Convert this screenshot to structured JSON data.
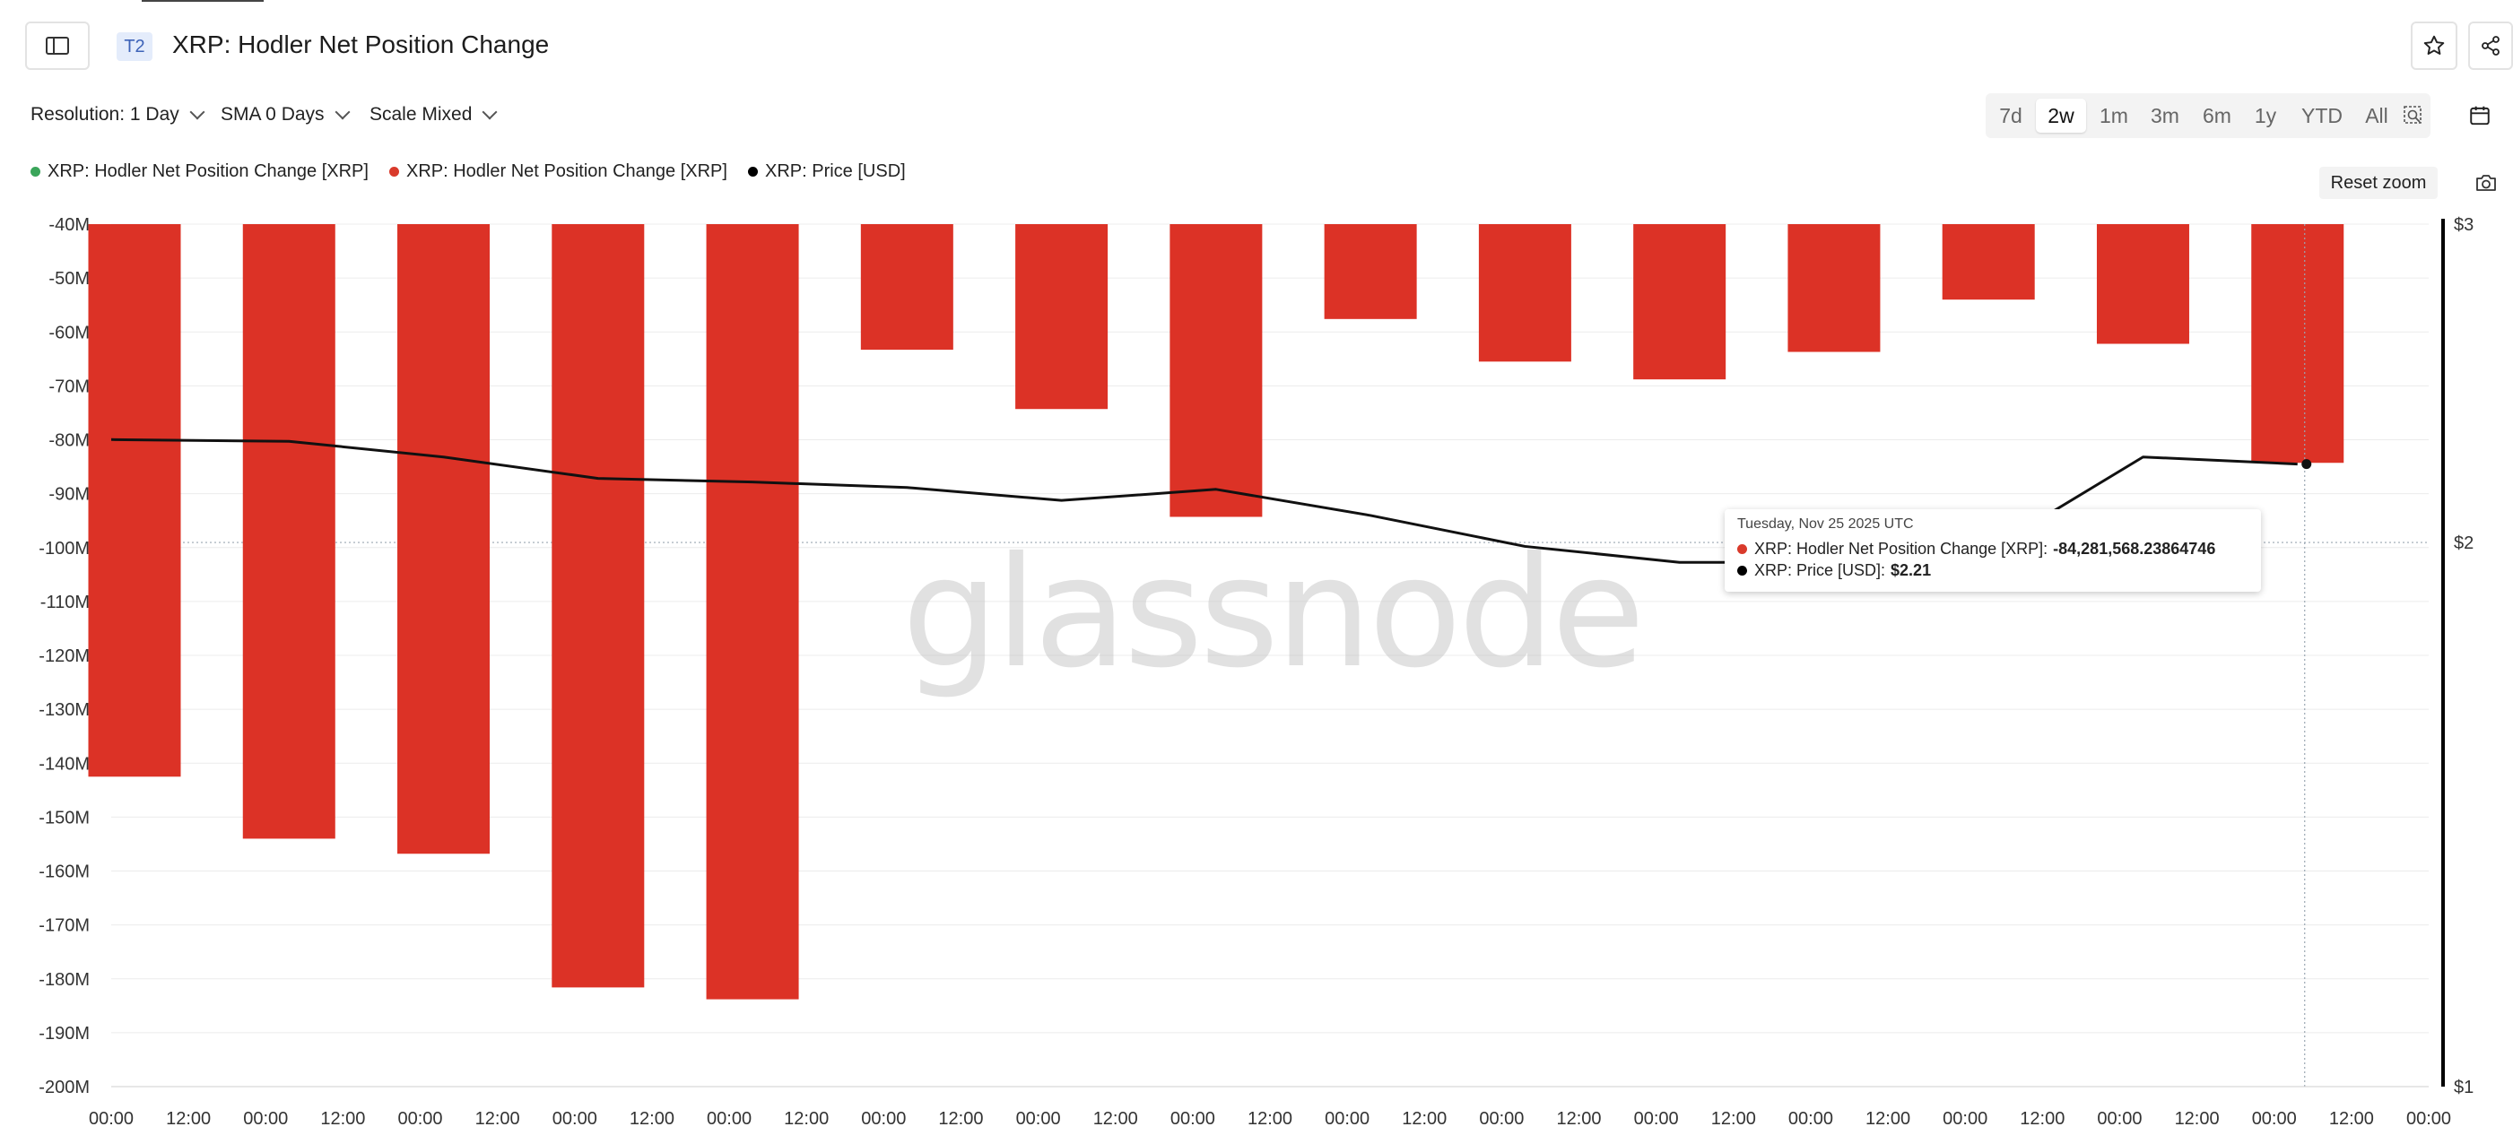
{
  "header": {
    "tier_badge": "T2",
    "title": "XRP: Hodler Net Position Change"
  },
  "controls": {
    "resolution": "Resolution: 1 Day",
    "sma": "SMA 0 Days",
    "scale": "Scale Mixed"
  },
  "ranges": [
    {
      "label": "7d",
      "active": false
    },
    {
      "label": "2w",
      "active": true
    },
    {
      "label": "1m",
      "active": false
    },
    {
      "label": "3m",
      "active": false
    },
    {
      "label": "6m",
      "active": false
    },
    {
      "label": "1y",
      "active": false
    },
    {
      "label": "YTD",
      "active": false
    },
    {
      "label": "All",
      "active": false
    }
  ],
  "legend": [
    {
      "label": "XRP: Hodler Net Position Change [XRP]",
      "color": "#3aa55a"
    },
    {
      "label": "XRP: Hodler Net Position Change [XRP]",
      "color": "#d93a2b"
    },
    {
      "label": "XRP: Price [USD]",
      "color": "#000000"
    }
  ],
  "reset_zoom": "Reset zoom",
  "watermark": "glassnode",
  "tooltip": {
    "date": "Tuesday, Nov 25 2025 UTC",
    "rows": [
      {
        "color": "#d93a2b",
        "label": "XRP: Hodler Net Position Change [XRP]:",
        "value": "-84,281,568.23864746"
      },
      {
        "color": "#000000",
        "label": "XRP: Price [USD]:",
        "value": "$2.21"
      }
    ]
  },
  "colors": {
    "bar_negative": "#dc3226",
    "price_line": "#111111",
    "grid": "#ececec"
  },
  "chart_data": {
    "type": "bar",
    "y_left": {
      "min": -200000000,
      "max": -40000000,
      "ticks": [
        -40,
        -50,
        -60,
        -70,
        -80,
        -90,
        -100,
        -110,
        -120,
        -130,
        -140,
        -150,
        -160,
        -170,
        -180,
        -190,
        -200
      ],
      "tick_labels": [
        "-40M",
        "-50M",
        "-60M",
        "-70M",
        "-80M",
        "-90M",
        "-100M",
        "-110M",
        "-120M",
        "-130M",
        "-140M",
        "-150M",
        "-160M",
        "-170M",
        "-180M",
        "-190M",
        "-200M"
      ]
    },
    "y_right": {
      "scale": "log",
      "min": 1,
      "max": 3,
      "ticks": [
        3,
        2,
        1
      ],
      "tick_labels": [
        "$3",
        "$2",
        "$1"
      ]
    },
    "x_tick_labels": [
      "00:00",
      "12:00",
      "00:00",
      "12:00",
      "00:00",
      "12:00",
      "00:00",
      "12:00",
      "00:00",
      "12:00",
      "00:00",
      "12:00",
      "00:00",
      "12:00",
      "00:00",
      "12:00",
      "00:00",
      "12:00",
      "00:00",
      "12:00",
      "00:00",
      "12:00",
      "00:00",
      "12:00",
      "00:00",
      "12:00",
      "00:00",
      "12:00",
      "00:00",
      "12:00",
      "00:00"
    ],
    "series": [
      {
        "name": "XRP: Hodler Net Position Change [XRP]",
        "color": "#dc3226",
        "values": [
          -142500000,
          -154000000,
          -156800000,
          -181600000,
          -183800000,
          -63300000,
          -74300000,
          -94300000,
          -57600000,
          -65500000,
          -68800000,
          -63700000,
          -54000000,
          -62200000,
          -84281568.23864746
        ]
      },
      {
        "name": "XRP: Price [USD]",
        "color": "#111111",
        "values": [
          2.28,
          2.275,
          2.23,
          2.17,
          2.16,
          2.145,
          2.11,
          2.14,
          2.07,
          1.99,
          1.95,
          1.95,
          1.98,
          2.23,
          2.21
        ]
      }
    ],
    "highlight_index": 14
  }
}
